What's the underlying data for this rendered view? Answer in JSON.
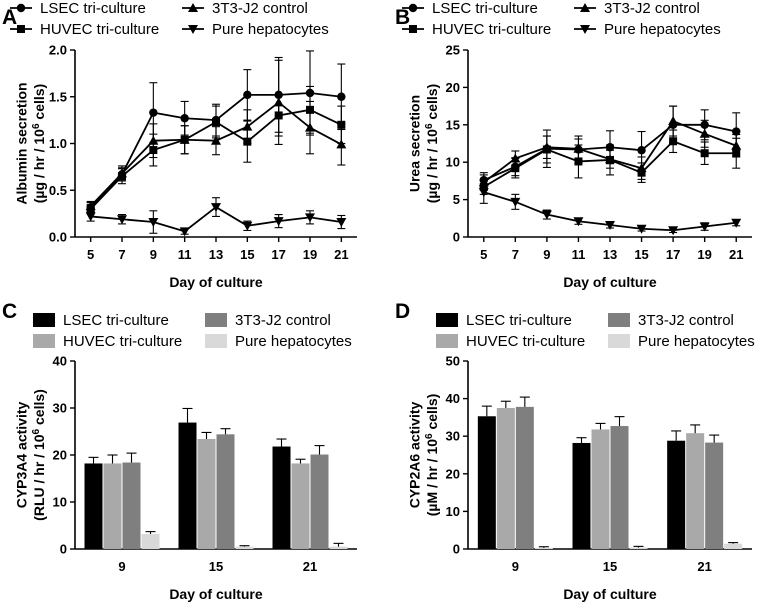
{
  "chart_data": [
    {
      "panel": "A",
      "type": "line",
      "x": [
        5,
        7,
        9,
        11,
        13,
        15,
        17,
        19,
        21
      ],
      "xlabel": "Day of culture",
      "ylabel_line1": "Albumin secretion",
      "ylabel_line2_prefix": "(µg / hr / 10",
      "ylabel_line2_sup": "6",
      "ylabel_line2_suffix": " cells)",
      "ylim": [
        0,
        2.0
      ],
      "yticks": [
        "0.0",
        "0.5",
        "1.0",
        "1.5",
        "2.0"
      ],
      "ytick_values": [
        0,
        0.5,
        1.0,
        1.5,
        2.0
      ],
      "legend": [
        {
          "label": "LSEC tri-culture",
          "marker": "circle"
        },
        {
          "label": "3T3-J2 control",
          "marker": "triangle-up"
        },
        {
          "label": "HUVEC tri-culture",
          "marker": "square"
        },
        {
          "label": "Pure hepatocytes",
          "marker": "triangle-down"
        }
      ],
      "series": [
        {
          "name": "LSEC tri-culture",
          "marker": "circle",
          "values": [
            0.31,
            0.67,
            1.33,
            1.27,
            1.25,
            1.52,
            1.52,
            1.54,
            1.5
          ],
          "errors": [
            0.06,
            0.07,
            0.32,
            0.18,
            0.17,
            0.27,
            0.4,
            0.45,
            0.35
          ]
        },
        {
          "name": "3T3-J2 control",
          "marker": "triangle-up",
          "values": [
            0.33,
            0.68,
            1.03,
            1.04,
            1.03,
            1.18,
            1.44,
            1.17,
            0.99
          ],
          "errors": [
            0.05,
            0.08,
            0.18,
            0.15,
            0.15,
            0.18,
            0.45,
            0.28,
            0.22
          ]
        },
        {
          "name": "HUVEC tri-culture",
          "marker": "square",
          "values": [
            0.3,
            0.65,
            0.93,
            1.04,
            1.23,
            1.02,
            1.3,
            1.36,
            1.2
          ],
          "errors": [
            0.05,
            0.08,
            0.17,
            0.15,
            0.17,
            0.22,
            0.22,
            0.25,
            0.2
          ]
        },
        {
          "name": "Pure hepatocytes",
          "marker": "triangle-down",
          "values": [
            0.22,
            0.19,
            0.16,
            0.06,
            0.32,
            0.12,
            0.17,
            0.21,
            0.16
          ],
          "errors": [
            0.05,
            0.05,
            0.12,
            0.03,
            0.1,
            0.05,
            0.07,
            0.07,
            0.07
          ]
        }
      ]
    },
    {
      "panel": "B",
      "type": "line",
      "x": [
        5,
        7,
        9,
        11,
        13,
        15,
        17,
        19,
        21
      ],
      "xlabel": "Day of culture",
      "ylabel_line1": "Urea secretion",
      "ylabel_line2_prefix": "(µg / hr / 10",
      "ylabel_line2_sup": "6",
      "ylabel_line2_suffix": " cells)",
      "ylim": [
        0,
        25
      ],
      "yticks": [
        "0",
        "5",
        "10",
        "15",
        "20",
        "25"
      ],
      "ytick_values": [
        0,
        5,
        10,
        15,
        20,
        25
      ],
      "legend": [
        {
          "label": "LSEC tri-culture",
          "marker": "circle"
        },
        {
          "label": "3T3-J2 control",
          "marker": "triangle-up"
        },
        {
          "label": "HUVEC tri-culture",
          "marker": "square"
        },
        {
          "label": "Pure hepatocytes",
          "marker": "triangle-down"
        }
      ],
      "series": [
        {
          "name": "LSEC tri-culture",
          "marker": "circle",
          "values": [
            7.6,
            9.4,
            11.8,
            11.7,
            12.0,
            11.6,
            15.0,
            15.0,
            14.1
          ],
          "errors": [
            1.0,
            1.2,
            2.5,
            1.8,
            2.2,
            2.5,
            2.5,
            2.0,
            2.5
          ]
        },
        {
          "name": "3T3-J2 control",
          "marker": "triangle-up",
          "values": [
            7.3,
            10.5,
            12.0,
            11.8,
            10.4,
            9.2,
            15.5,
            13.8,
            12.2
          ],
          "errors": [
            1.0,
            1.0,
            1.5,
            1.3,
            1.2,
            1.5,
            2.0,
            1.8,
            1.5
          ]
        },
        {
          "name": "HUVEC tri-culture",
          "marker": "square",
          "values": [
            6.7,
            9.2,
            11.7,
            10.1,
            10.3,
            8.6,
            12.8,
            11.2,
            11.2
          ],
          "errors": [
            1.0,
            1.3,
            1.8,
            2.2,
            2.0,
            1.3,
            1.5,
            1.5,
            2.0
          ]
        },
        {
          "name": "Pure hepatocytes",
          "marker": "triangle-down",
          "values": [
            6.0,
            4.7,
            3.0,
            2.1,
            1.6,
            1.1,
            0.9,
            1.4,
            1.9
          ],
          "errors": [
            1.5,
            1.0,
            0.6,
            0.4,
            0.4,
            0.3,
            0.3,
            0.5,
            0.4
          ]
        }
      ]
    },
    {
      "panel": "C",
      "type": "bar",
      "categories": [
        "9",
        "15",
        "21"
      ],
      "xlabel": "Day of culture",
      "ylabel_line1": "CYP3A4 activity",
      "ylabel_line2_prefix": "(RLU / hr / 10",
      "ylabel_line2_sup": "6",
      "ylabel_line2_suffix": " cells)",
      "ylim": [
        0,
        40
      ],
      "yticks": [
        "0",
        "10",
        "20",
        "30",
        "40"
      ],
      "ytick_values": [
        0,
        10,
        20,
        30,
        40
      ],
      "legend": [
        {
          "label": "LSEC tri-culture",
          "color": "#000000"
        },
        {
          "label": "3T3-J2 control",
          "color": "#7f7f7f"
        },
        {
          "label": "HUVEC tri-culture",
          "color": "#a9a9a9"
        },
        {
          "label": "Pure hepatocytes",
          "color": "#d9d9d9"
        }
      ],
      "series": [
        {
          "name": "LSEC tri-culture",
          "color": "#000000",
          "values": [
            18.2,
            26.9,
            21.8
          ],
          "errors": [
            1.3,
            3.0,
            1.6
          ]
        },
        {
          "name": "HUVEC tri-culture",
          "color": "#a9a9a9",
          "values": [
            18.2,
            23.4,
            18.2
          ],
          "errors": [
            1.8,
            1.4,
            0.9
          ]
        },
        {
          "name": "3T3-J2 control",
          "color": "#7f7f7f",
          "values": [
            18.4,
            24.4,
            20.1
          ],
          "errors": [
            2.0,
            1.2,
            1.9
          ]
        },
        {
          "name": "Pure hepatocytes",
          "color": "#d9d9d9",
          "values": [
            3.2,
            0.5,
            0.5
          ],
          "errors": [
            0.5,
            0.2,
            0.7
          ]
        }
      ]
    },
    {
      "panel": "D",
      "type": "bar",
      "categories": [
        "9",
        "15",
        "21"
      ],
      "xlabel": "Day of culture",
      "ylabel_line1": "CYP2A6 activity",
      "ylabel_line2_prefix": "(µM / hr / 10",
      "ylabel_line2_sup": "6",
      "ylabel_line2_suffix": " cells)",
      "ylim": [
        0,
        50
      ],
      "yticks": [
        "0",
        "10",
        "20",
        "30",
        "40",
        "50"
      ],
      "ytick_values": [
        0,
        10,
        20,
        30,
        40,
        50
      ],
      "legend": [
        {
          "label": "LSEC tri-culture",
          "color": "#000000"
        },
        {
          "label": "3T3-J2 control",
          "color": "#7f7f7f"
        },
        {
          "label": "HUVEC tri-culture",
          "color": "#a9a9a9"
        },
        {
          "label": "Pure hepatocytes",
          "color": "#d9d9d9"
        }
      ],
      "series": [
        {
          "name": "LSEC tri-culture",
          "color": "#000000",
          "values": [
            35.3,
            28.2,
            28.8
          ],
          "errors": [
            2.7,
            1.4,
            2.6
          ]
        },
        {
          "name": "HUVEC tri-culture",
          "color": "#a9a9a9",
          "values": [
            37.5,
            31.8,
            30.8
          ],
          "errors": [
            1.8,
            1.6,
            2.2
          ]
        },
        {
          "name": "3T3-J2 control",
          "color": "#7f7f7f",
          "values": [
            37.8,
            32.7,
            28.3
          ],
          "errors": [
            2.6,
            2.5,
            2.0
          ]
        },
        {
          "name": "Pure hepatocytes",
          "color": "#d9d9d9",
          "values": [
            0.3,
            0.4,
            1.4
          ],
          "errors": [
            0.3,
            0.3,
            0.3
          ]
        }
      ]
    }
  ]
}
